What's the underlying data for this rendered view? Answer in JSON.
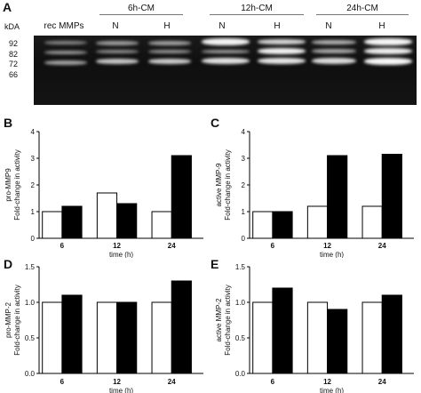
{
  "panelA": {
    "letter": "A",
    "kda_label": "kDA",
    "rec_label": "rec MMPs",
    "groups": [
      "6h-CM",
      "12h-CM",
      "24h-CM"
    ],
    "lanes": [
      "N",
      "H",
      "N",
      "H",
      "N",
      "H"
    ],
    "markers": [
      "92",
      "82",
      "72",
      "66"
    ]
  },
  "chart_data": [
    {
      "type": "bar",
      "panel": "B",
      "ylabel": "pro-MMP9 Fold-change in activity",
      "xlabel": "time (h)",
      "categories": [
        "6",
        "12",
        "24"
      ],
      "series": [
        {
          "fill": "white",
          "values": [
            1.0,
            1.7,
            1.0
          ]
        },
        {
          "fill": "black",
          "values": [
            1.2,
            1.3,
            3.1
          ]
        }
      ],
      "ylim": [
        0,
        4
      ],
      "yticks": [
        "0",
        "1",
        "2",
        "3",
        "4"
      ]
    },
    {
      "type": "bar",
      "panel": "C",
      "ylabel": "active MMP-9 Fold-change in activity",
      "xlabel": "time (h)",
      "categories": [
        "6",
        "12",
        "24"
      ],
      "series": [
        {
          "fill": "white",
          "values": [
            1.0,
            1.2,
            1.2
          ]
        },
        {
          "fill": "black",
          "values": [
            1.0,
            3.1,
            3.15
          ]
        }
      ],
      "ylim": [
        0,
        4
      ],
      "yticks": [
        "0",
        "1",
        "2",
        "3",
        "4"
      ]
    },
    {
      "type": "bar",
      "panel": "D",
      "ylabel": "pro-MMP-2 Fold-change in activity",
      "xlabel": "time (h)",
      "categories": [
        "6",
        "12",
        "24"
      ],
      "series": [
        {
          "fill": "white",
          "values": [
            1.0,
            1.0,
            1.0
          ]
        },
        {
          "fill": "black",
          "values": [
            1.1,
            1.0,
            1.3
          ]
        }
      ],
      "ylim": [
        0,
        1.5
      ],
      "yticks": [
        "0.0",
        "0.5",
        "1.0",
        "1.5"
      ]
    },
    {
      "type": "bar",
      "panel": "E",
      "ylabel": "active MMP-2 Fold-change in activity",
      "xlabel": "time (h)",
      "categories": [
        "6",
        "12",
        "24"
      ],
      "series": [
        {
          "fill": "white",
          "values": [
            1.0,
            1.0,
            1.0
          ]
        },
        {
          "fill": "black",
          "values": [
            1.2,
            0.9,
            1.1
          ]
        }
      ],
      "ylim": [
        0,
        1.5
      ],
      "yticks": [
        "0.0",
        "0.5",
        "1.0",
        "1.5"
      ]
    }
  ]
}
